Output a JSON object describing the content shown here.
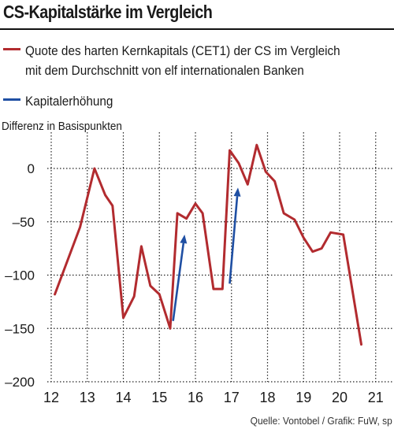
{
  "title": "CS-Kapitalstärke im Vergleich",
  "legend": [
    {
      "line1": "Quote des harten Kernkapitals (CET1) der CS im Vergleich",
      "line2": "mit dem Durchschnitt von elf internationalen Banken",
      "color": "#b22b2f"
    },
    {
      "line1": "Kapitalerhöhung",
      "line2": "",
      "color": "#1f4fa3"
    }
  ],
  "unit_label": "Differenz in Basispunkten",
  "source": "Quelle: Vontobel / Grafik: FuW, sp",
  "chart_data": {
    "type": "line",
    "ylim": [
      -200,
      25
    ],
    "xlim": [
      11.8,
      21.4
    ],
    "yticks": [
      0,
      -50,
      -100,
      -150,
      -200
    ],
    "ytick_labels": [
      "0",
      "–50",
      "–100",
      "–150",
      "–200"
    ],
    "xticks": [
      12,
      13,
      14,
      15,
      16,
      17,
      18,
      19,
      20,
      21
    ],
    "xtick_labels": [
      "12",
      "13",
      "14",
      "15",
      "16",
      "17",
      "18",
      "19",
      "20",
      "21"
    ],
    "grid": "dotted",
    "series": [
      {
        "name": "Quote des harten Kernkapitals (CET1) der CS im Vergleich mit dem Durchschnitt von elf internationalen Banken",
        "color": "#b22b2f",
        "x": [
          12.1,
          12.8,
          13.2,
          13.5,
          13.7,
          14.0,
          14.3,
          14.5,
          14.75,
          15.0,
          15.3,
          15.5,
          15.75,
          16.0,
          16.2,
          16.5,
          16.75,
          16.95,
          17.2,
          17.45,
          17.7,
          17.95,
          18.2,
          18.45,
          18.75,
          19.0,
          19.25,
          19.5,
          19.75,
          20.1,
          20.6
        ],
        "y": [
          -118,
          -55,
          0,
          -25,
          -35,
          -140,
          -120,
          -73,
          -110,
          -118,
          -150,
          -42,
          -47,
          -33,
          -42,
          -113,
          -113,
          17,
          5,
          -15,
          22,
          -3,
          -12,
          -42,
          -48,
          -65,
          -78,
          -75,
          -60,
          -62,
          -165
        ]
      }
    ],
    "capital_increases": [
      {
        "x": [
          15.38,
          15.7
        ],
        "y": [
          -143,
          -62
        ]
      },
      {
        "x": [
          16.95,
          17.18
        ],
        "y": [
          -108,
          -18
        ]
      }
    ]
  }
}
